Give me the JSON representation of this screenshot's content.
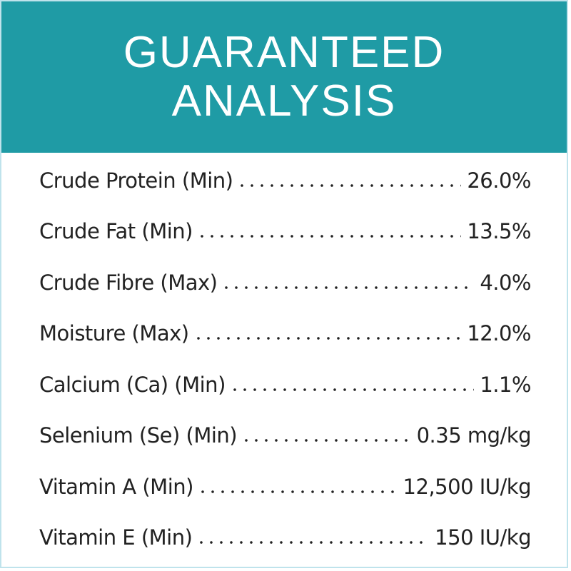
{
  "header": {
    "title": [
      "GUARANTEED",
      "ANALYSIS"
    ]
  },
  "table": {
    "rows": [
      [
        "Crude Protein (Min)",
        "26.0%"
      ],
      [
        "Crude Fat (Min)",
        "13.5%"
      ],
      [
        "Crude Fibre (Max)",
        "4.0%"
      ],
      [
        "Moisture (Max)",
        "12.0%"
      ],
      [
        "Calcium (Ca) (Min)",
        "1.1%"
      ],
      [
        "Selenium (Se) (Min)",
        "0.35 mg/kg"
      ],
      [
        "Vitamin A (Min)",
        "12,500 IU/kg"
      ],
      [
        "Vitamin E (Min)",
        "150 IU/kg"
      ]
    ]
  }
}
